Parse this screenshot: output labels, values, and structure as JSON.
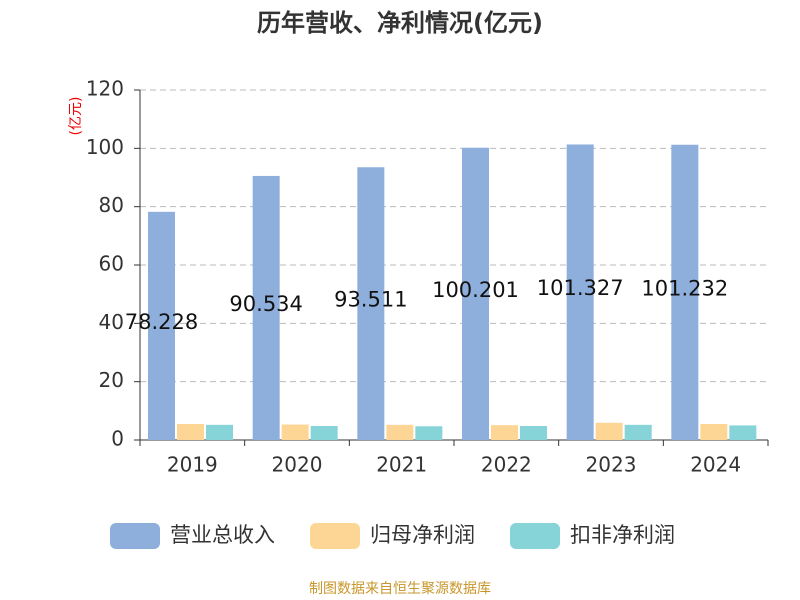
{
  "chart_data": {
    "type": "bar",
    "title": "历年营收、净利情况(亿元)",
    "y_label": "(亿元)",
    "categories": [
      "2019",
      "2020",
      "2021",
      "2022",
      "2023",
      "2024"
    ],
    "series": [
      {
        "name": "营业总收入",
        "color": "#8eaedb",
        "values": [
          78.228,
          90.534,
          93.511,
          100.201,
          101.327,
          101.232
        ],
        "show_labels": true
      },
      {
        "name": "归母净利润",
        "color": "#fdd696",
        "values": [
          5.5,
          5.3,
          5.2,
          5.1,
          5.9,
          5.5
        ],
        "show_labels": false
      },
      {
        "name": "扣非净利润",
        "color": "#86d4d8",
        "values": [
          5.2,
          4.8,
          4.7,
          4.8,
          5.2,
          5.0
        ],
        "show_labels": false
      }
    ],
    "ylim": [
      0,
      120
    ],
    "yticks": [
      0,
      20,
      40,
      60,
      80,
      100,
      120
    ],
    "grid": true,
    "source": "制图数据来自恒生聚源数据库"
  }
}
